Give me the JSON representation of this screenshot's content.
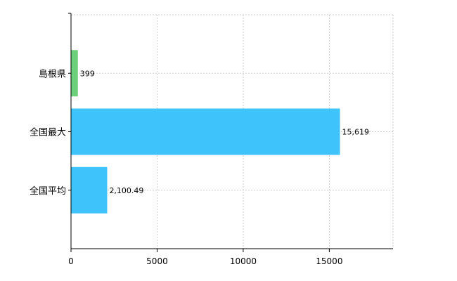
{
  "chart_data": {
    "type": "bar",
    "orientation": "horizontal",
    "categories": [
      "島根県",
      "全国最大",
      "全国平均"
    ],
    "values": [
      399,
      15619,
      2100.49
    ],
    "data_labels": [
      "399",
      "15,619",
      "2,100.49"
    ],
    "bar_colors": [
      "#6ccf7a",
      "#3ec3fb",
      "#3ec3fb"
    ],
    "xlim": [
      0,
      18700
    ],
    "x_ticks": [
      0,
      5000,
      10000,
      15000
    ],
    "x_tick_labels": [
      "0",
      "5000",
      "10000",
      "15000"
    ],
    "grid": true,
    "legend": "none",
    "title": "",
    "xlabel": "",
    "ylabel": ""
  }
}
